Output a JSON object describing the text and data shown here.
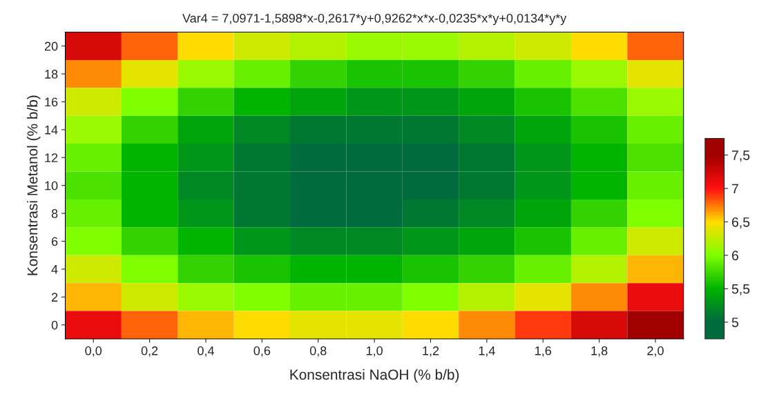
{
  "chart_data": {
    "type": "heatmap",
    "title": "Var4 = 7,0971-1,5898*x-0,2617*y+0,9262*x*x-0,0235*x*y+0,0134*y*y",
    "xlabel": "Konsentrasi NaOH (% b/b)",
    "ylabel": "Konsentrasi Metanol (% b/b)",
    "categories": [
      "0,0",
      "0,2",
      "0,4",
      "0,6",
      "0,8",
      "1,0",
      "1,2",
      "1,4",
      "1,6",
      "1,8",
      "2,0"
    ],
    "y_categories": [
      "20",
      "18",
      "16",
      "14",
      "12",
      "10",
      "8",
      "6",
      "4",
      "2",
      "0"
    ],
    "cells": [
      [
        7.2,
        6.8,
        6.5,
        6.3,
        6.2,
        6.1,
        6.1,
        6.2,
        6.3,
        6.5,
        6.8
      ],
      [
        6.7,
        6.4,
        6.1,
        5.9,
        5.7,
        5.6,
        5.6,
        5.7,
        5.9,
        6.1,
        6.4
      ],
      [
        6.3,
        6.0,
        5.7,
        5.5,
        5.4,
        5.3,
        5.3,
        5.4,
        5.6,
        5.8,
        6.1
      ],
      [
        6.1,
        5.7,
        5.4,
        5.2,
        5.1,
        5.1,
        5.1,
        5.2,
        5.4,
        5.6,
        5.9
      ],
      [
        5.9,
        5.5,
        5.3,
        5.1,
        5.0,
        4.9,
        5.0,
        5.1,
        5.3,
        5.5,
        5.8
      ],
      [
        5.8,
        5.5,
        5.2,
        5.1,
        5.0,
        4.9,
        5.0,
        5.1,
        5.3,
        5.5,
        5.9
      ],
      [
        5.9,
        5.5,
        5.3,
        5.1,
        5.0,
        5.0,
        5.1,
        5.2,
        5.4,
        5.7,
        6.0
      ],
      [
        6.0,
        5.7,
        5.5,
        5.3,
        5.2,
        5.2,
        5.3,
        5.4,
        5.6,
        5.9,
        6.3
      ],
      [
        6.3,
        6.0,
        5.7,
        5.6,
        5.5,
        5.5,
        5.6,
        5.7,
        5.9,
        6.2,
        6.6
      ],
      [
        6.6,
        6.3,
        6.1,
        6.0,
        5.9,
        5.9,
        6.0,
        6.2,
        6.4,
        6.7,
        7.1
      ],
      [
        7.1,
        6.8,
        6.6,
        6.5,
        6.4,
        6.4,
        6.5,
        6.7,
        6.9,
        7.2,
        7.6
      ]
    ],
    "clim": [
      4.75,
      7.75
    ],
    "cticks": [
      {
        "value": 7.5,
        "label": "7,5"
      },
      {
        "value": 7,
        "label": "7"
      },
      {
        "value": 6.5,
        "label": "6,5"
      },
      {
        "value": 6,
        "label": "6"
      },
      {
        "value": 5.5,
        "label": "5,5"
      },
      {
        "value": 5,
        "label": "5"
      }
    ],
    "colors": [
      "#a00000",
      "#ff1010",
      "#ffdd00",
      "#80ff00",
      "#00b400",
      "#006b3c"
    ]
  }
}
